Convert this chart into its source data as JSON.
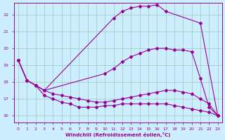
{
  "xlabel": "Windchill (Refroidissement éolien,°C)",
  "bg_color": "#cceeff",
  "line_color": "#990099",
  "grid_color": "#aaddcc",
  "xlim": [
    -0.5,
    23.5
  ],
  "ylim": [
    15.6,
    22.7
  ],
  "xticks": [
    0,
    1,
    2,
    3,
    4,
    5,
    6,
    7,
    8,
    9,
    10,
    11,
    12,
    13,
    14,
    15,
    16,
    17,
    18,
    19,
    20,
    21,
    22,
    23
  ],
  "yticks": [
    16,
    17,
    18,
    19,
    20,
    21,
    22
  ],
  "lines": [
    {
      "x": [
        0,
        1,
        2,
        3,
        11,
        12,
        13,
        14,
        15,
        16,
        17,
        21,
        23
      ],
      "y": [
        19.3,
        18.1,
        17.8,
        17.5,
        21.8,
        22.2,
        22.4,
        22.5,
        22.5,
        22.6,
        22.2,
        21.5,
        16.0
      ]
    },
    {
      "x": [
        0,
        1,
        2,
        3,
        10,
        11,
        12,
        13,
        14,
        15,
        16,
        17,
        18,
        19,
        20,
        21,
        22,
        23
      ],
      "y": [
        19.3,
        18.1,
        17.8,
        17.5,
        18.5,
        18.8,
        19.2,
        19.5,
        19.7,
        19.9,
        20.0,
        20.0,
        19.9,
        19.9,
        19.8,
        18.2,
        16.5,
        16.0
      ]
    },
    {
      "x": [
        0,
        1,
        2,
        3,
        4,
        5,
        6,
        7,
        8,
        9,
        10,
        11,
        12,
        13,
        14,
        15,
        16,
        17,
        18,
        19,
        20,
        21,
        22,
        23
      ],
      "y": [
        19.3,
        18.1,
        17.8,
        17.5,
        17.3,
        17.2,
        17.1,
        17.0,
        16.9,
        16.8,
        16.8,
        16.9,
        17.0,
        17.1,
        17.2,
        17.3,
        17.4,
        17.5,
        17.5,
        17.4,
        17.3,
        17.0,
        16.7,
        16.0
      ]
    },
    {
      "x": [
        0,
        1,
        2,
        3,
        4,
        5,
        6,
        7,
        8,
        9,
        10,
        11,
        12,
        13,
        14,
        15,
        16,
        17,
        18,
        19,
        20,
        21,
        22,
        23
      ],
      "y": [
        19.3,
        18.1,
        17.8,
        17.2,
        17.0,
        16.8,
        16.7,
        16.5,
        16.5,
        16.5,
        16.6,
        16.6,
        16.7,
        16.7,
        16.7,
        16.7,
        16.7,
        16.7,
        16.6,
        16.5,
        16.4,
        16.3,
        16.2,
        16.0
      ]
    }
  ]
}
